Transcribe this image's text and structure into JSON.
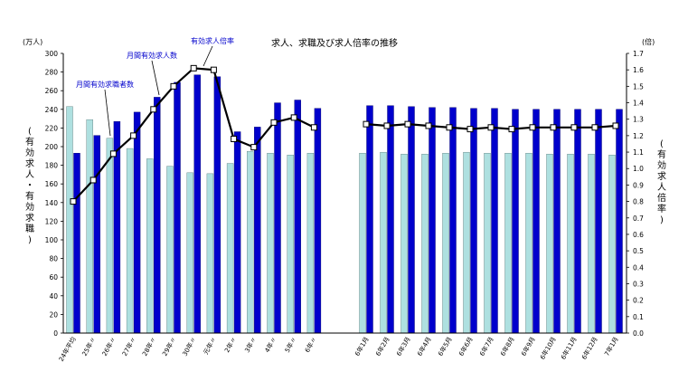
{
  "chart_data": {
    "type": "bar",
    "title": "求人、求職及び求人倍率の推移",
    "left_unit": "(万人)",
    "right_unit": "(倍)",
    "left_axis_label": [
      "(",
      "有",
      "効",
      "求",
      "人",
      "・",
      "有",
      "効",
      "求",
      "職",
      ")"
    ],
    "right_axis_label": [
      "(",
      "有",
      "効",
      "求",
      "人",
      "倍",
      "率",
      ")"
    ],
    "ylim_left": [
      0,
      300
    ],
    "ylim_right": [
      0.0,
      1.7
    ],
    "left_ticks": [
      "0",
      "20",
      "40",
      "60",
      "80",
      "100",
      "120",
      "140",
      "160",
      "180",
      "200",
      "220",
      "240",
      "260",
      "280",
      "300"
    ],
    "right_ticks": [
      "0.0",
      "0.1",
      "0.2",
      "0.3",
      "0.4",
      "0.5",
      "0.6",
      "0.7",
      "0.8",
      "0.9",
      "1.0",
      "1.1",
      "1.2",
      "1.3",
      "1.4",
      "1.5",
      "1.6",
      "1.7"
    ],
    "categories": [
      "24年平均",
      "25年〃",
      "26年〃",
      "27年〃",
      "28年〃",
      "29年〃",
      "30年〃",
      "元年〃",
      "2年〃",
      "3年〃",
      "4年〃",
      "5年〃",
      "6年〃",
      "6年1月",
      "6年2月",
      "6年3月",
      "6年4月",
      "6年5月",
      "6年6月",
      "6年7月",
      "6年8月",
      "6年9月",
      "6年10月",
      "6年11月",
      "6年12月",
      "7年1月"
    ],
    "series": [
      {
        "name": "月間有効求職者数",
        "color": "#aee0e0",
        "values": [
          243,
          229,
          209,
          198,
          187,
          179,
          172,
          171,
          182,
          195,
          193,
          191,
          193,
          193,
          194,
          192,
          192,
          193,
          194,
          193,
          193,
          193,
          192,
          192,
          192,
          191
        ]
      },
      {
        "name": "月間有効求人数",
        "color": "#0000cc",
        "values": [
          193,
          212,
          227,
          237,
          253,
          269,
          277,
          275,
          216,
          221,
          247,
          250,
          241,
          244,
          244,
          243,
          242,
          242,
          241,
          241,
          240,
          240,
          240,
          240,
          240,
          240
        ]
      },
      {
        "name": "有効求人倍率",
        "color": "#000000",
        "axis": "right",
        "values": [
          0.8,
          0.93,
          1.09,
          1.2,
          1.36,
          1.5,
          1.61,
          1.6,
          1.18,
          1.13,
          1.28,
          1.31,
          1.25,
          1.27,
          1.26,
          1.27,
          1.26,
          1.25,
          1.24,
          1.25,
          1.24,
          1.25,
          1.25,
          1.25,
          1.25,
          1.26
        ]
      }
    ],
    "legend": "callouts-on-plot",
    "grid": false
  }
}
